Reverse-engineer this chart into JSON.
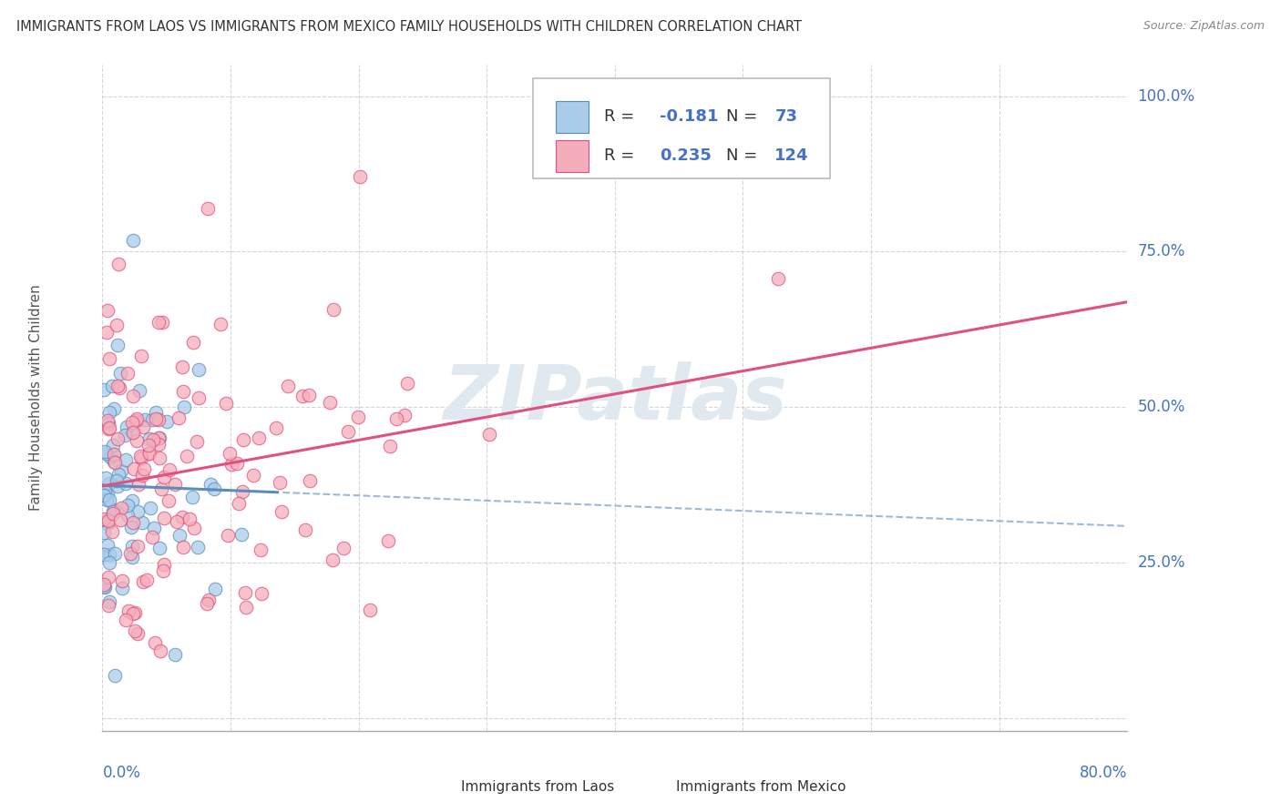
{
  "title": "IMMIGRANTS FROM LAOS VS IMMIGRANTS FROM MEXICO FAMILY HOUSEHOLDS WITH CHILDREN CORRELATION CHART",
  "source": "Source: ZipAtlas.com",
  "ylabel_label": "Family Households with Children",
  "legend_laos": "Immigrants from Laos",
  "legend_mexico": "Immigrants from Mexico",
  "R_laos": -0.181,
  "N_laos": 73,
  "R_mexico": 0.235,
  "N_mexico": 124,
  "color_laos": "#A8CCEA",
  "color_mexico": "#F4AEBB",
  "color_laos_line": "#5B8DB8",
  "color_mexico_line": "#E05080",
  "color_grid": "#CCCCCC",
  "axis_label_color": "#4472C4",
  "title_color": "#333333",
  "source_color": "#888888",
  "watermark_text": "ZIPatlas",
  "watermark_color": "#E0E8F0",
  "xlim": [
    0.0,
    0.8
  ],
  "ylim": [
    -0.02,
    1.05
  ],
  "background_color": "#FFFFFF",
  "seed_laos": 42,
  "seed_mexico": 77
}
